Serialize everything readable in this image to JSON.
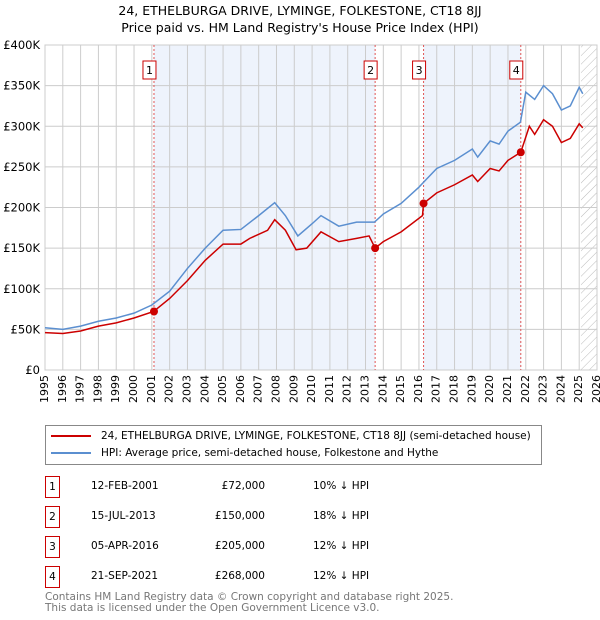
{
  "chart_data": {
    "type": "line",
    "title": "24, ETHELBURGA DRIVE, LYMINGE, FOLKESTONE, CT18 8JJ",
    "subtitle": "Price paid vs. HM Land Registry's House Price Index (HPI)",
    "xlim": [
      1995,
      2026
    ],
    "ylim": [
      0,
      400000
    ],
    "x_ticks": [
      "1995",
      "1996",
      "1997",
      "1998",
      "1999",
      "2000",
      "2001",
      "2002",
      "2003",
      "2004",
      "2005",
      "2006",
      "2007",
      "2008",
      "2009",
      "2010",
      "2011",
      "2012",
      "2013",
      "2014",
      "2015",
      "2016",
      "2017",
      "2018",
      "2019",
      "2020",
      "2021",
      "2022",
      "2023",
      "2024",
      "2025",
      "2026"
    ],
    "y_ticks": [
      {
        "v": 0,
        "label": "£0"
      },
      {
        "v": 50000,
        "label": "£50K"
      },
      {
        "v": 100000,
        "label": "£100K"
      },
      {
        "v": 150000,
        "label": "£150K"
      },
      {
        "v": 200000,
        "label": "£200K"
      },
      {
        "v": 250000,
        "label": "£250K"
      },
      {
        "v": 300000,
        "label": "£300K"
      },
      {
        "v": 350000,
        "label": "£350K"
      },
      {
        "v": 400000,
        "label": "£400K"
      }
    ],
    "grid": true,
    "series": [
      {
        "name": "24, ETHELBURGA DRIVE, LYMINGE, FOLKESTONE, CT18 8JJ (semi-detached house)",
        "color": "#cc0000",
        "x": [
          1995,
          1996,
          1997,
          1998,
          1999,
          2000,
          2001.1,
          2002,
          2003,
          2004,
          2005,
          2006,
          2006.5,
          2007.5,
          2007.9,
          2008.5,
          2009.1,
          2009.7,
          2010.5,
          2011.5,
          2012.5,
          2013.2,
          2013.54,
          2014,
          2015,
          2016.2,
          2016.26,
          2017,
          2018,
          2019,
          2019.3,
          2020,
          2020.5,
          2021,
          2021.72,
          2022.2,
          2022.5,
          2023,
          2023.5,
          2024,
          2024.5,
          2025,
          2025.2
        ],
        "y": [
          46000,
          45000,
          48000,
          54000,
          58000,
          64000,
          72000,
          88000,
          110000,
          135000,
          155000,
          155000,
          162000,
          172000,
          185000,
          172000,
          148000,
          150000,
          170000,
          158000,
          162000,
          165000,
          150000,
          158000,
          170000,
          190000,
          205000,
          218000,
          228000,
          240000,
          232000,
          248000,
          245000,
          258000,
          268000,
          300000,
          290000,
          308000,
          300000,
          280000,
          285000,
          303000,
          298000
        ]
      },
      {
        "name": "HPI: Average price, semi-detached house, Folkestone and Hythe",
        "color": "#5b8fd0",
        "x": [
          1995,
          1996,
          1997,
          1998,
          1999,
          2000,
          2001,
          2002,
          2003,
          2004,
          2005,
          2006,
          2007,
          2007.9,
          2008.5,
          2009.2,
          2010,
          2010.5,
          2011.5,
          2012.5,
          2013.5,
          2014,
          2015,
          2016,
          2016.3,
          2017,
          2018,
          2019,
          2019.3,
          2020,
          2020.5,
          2021,
          2021.7,
          2022,
          2022.5,
          2023,
          2023.5,
          2024,
          2024.5,
          2025,
          2025.2
        ],
        "y": [
          52000,
          50000,
          54000,
          60000,
          64000,
          70000,
          80000,
          97000,
          125000,
          150000,
          172000,
          173000,
          190000,
          206000,
          190000,
          165000,
          180000,
          190000,
          177000,
          182000,
          182000,
          192000,
          205000,
          225000,
          232000,
          248000,
          258000,
          272000,
          262000,
          282000,
          278000,
          294000,
          305000,
          342000,
          333000,
          350000,
          340000,
          320000,
          325000,
          348000,
          340000
        ]
      }
    ],
    "sales": [
      {
        "n": "1",
        "x": 2001.12,
        "price": 72000
      },
      {
        "n": "2",
        "x": 2013.54,
        "price": 150000
      },
      {
        "n": "3",
        "x": 2016.26,
        "price": 205000
      },
      {
        "n": "4",
        "x": 2021.72,
        "price": 268000
      }
    ],
    "shaded": [
      [
        2001.12,
        2013.54
      ],
      [
        2016.26,
        2021.72
      ]
    ],
    "forecast_start": 2025.1
  },
  "transactions": [
    {
      "n": "1",
      "date": "12-FEB-2001",
      "price": "£72,000",
      "hpi": "10% ↓ HPI"
    },
    {
      "n": "2",
      "date": "15-JUL-2013",
      "price": "£150,000",
      "hpi": "18% ↓ HPI"
    },
    {
      "n": "3",
      "date": "05-APR-2016",
      "price": "£205,000",
      "hpi": "12% ↓ HPI"
    },
    {
      "n": "4",
      "date": "21-SEP-2021",
      "price": "£268,000",
      "hpi": "12% ↓ HPI"
    }
  ],
  "footer": [
    "Contains HM Land Registry data © Crown copyright and database right 2025.",
    "This data is licensed under the Open Government Licence v3.0."
  ]
}
